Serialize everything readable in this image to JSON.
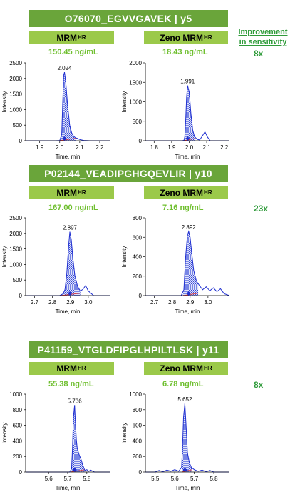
{
  "improvement_header": [
    "Improvement",
    "in sensitivity"
  ],
  "chart_data": [
    {
      "peptide": "O76070_EGVVGAVEK | y5",
      "improvement": "8x",
      "panels": [
        {
          "method": "MRM",
          "method_sup": "HR",
          "concentration": "150.45 ng/mL",
          "type": "line",
          "xlabel": "Time, min",
          "ylabel": "Intensity",
          "xlim": [
            1.83,
            2.25
          ],
          "ylim": [
            0,
            2500
          ],
          "xticks": [
            "1.9",
            "2.0",
            "2.1",
            "2.2"
          ],
          "xtick_values": [
            1.9,
            2.0,
            2.1,
            2.2
          ],
          "yticks": [
            "0",
            "500",
            "1000",
            "1500",
            "2000",
            "2500"
          ],
          "ytick_values": [
            0,
            500,
            1000,
            1500,
            2000,
            2500
          ],
          "apex_label": "2.024",
          "x": [
            1.83,
            1.9,
            1.98,
            2.0,
            2.01,
            2.015,
            2.02,
            2.024,
            2.03,
            2.04,
            2.05,
            2.06,
            2.07,
            2.08,
            2.09,
            2.1,
            2.12,
            2.15,
            2.25
          ],
          "y": [
            0,
            0,
            0,
            5,
            200,
            1200,
            2100,
            2200,
            1900,
            1100,
            500,
            250,
            140,
            90,
            70,
            40,
            10,
            0,
            0
          ],
          "shade": [
            1.995,
            2.08
          ]
        },
        {
          "method": "Zeno MRM",
          "method_sup": "HR",
          "concentration": "18.43 ng/mL",
          "type": "line",
          "xlabel": "Time, min",
          "ylabel": "Intensity",
          "xlim": [
            1.75,
            2.23
          ],
          "ylim": [
            0,
            2000
          ],
          "xticks": [
            "1.8",
            "1.9",
            "2.0",
            "2.1",
            "2.2"
          ],
          "xtick_values": [
            1.8,
            1.9,
            2.0,
            2.1,
            2.2
          ],
          "yticks": [
            "0",
            "500",
            "1000",
            "1500",
            "2000"
          ],
          "ytick_values": [
            0,
            500,
            1000,
            1500,
            2000
          ],
          "apex_label": "1.991",
          "x": [
            1.75,
            1.9,
            1.96,
            1.97,
            1.975,
            1.98,
            1.985,
            1.991,
            2.0,
            2.01,
            2.02,
            2.03,
            2.04,
            2.05,
            2.06,
            2.075,
            2.09,
            2.105,
            2.12,
            2.23
          ],
          "y": [
            0,
            0,
            0,
            10,
            100,
            500,
            1100,
            1420,
            1250,
            700,
            280,
            110,
            60,
            30,
            20,
            120,
            230,
            90,
            0,
            0
          ],
          "shade": [
            1.97,
            2.035
          ]
        }
      ]
    },
    {
      "peptide": "P02144_VEADIPGHGQEVLIR | y10",
      "improvement": "23x",
      "panels": [
        {
          "method": "MRM",
          "method_sup": "HR",
          "concentration": "167.00 ng/mL",
          "type": "line",
          "xlabel": "Time, min",
          "ylabel": "Intensity",
          "xlim": [
            2.65,
            3.12
          ],
          "ylim": [
            0,
            2500
          ],
          "xticks": [
            "2.7",
            "2.8",
            "2.9",
            "3.0"
          ],
          "xtick_values": [
            2.7,
            2.8,
            2.9,
            3.0
          ],
          "yticks": [
            "0",
            "500",
            "1000",
            "1500",
            "2000",
            "2500"
          ],
          "ytick_values": [
            0,
            500,
            1000,
            1500,
            2000,
            2500
          ],
          "apex_label": "2.897",
          "x": [
            2.65,
            2.8,
            2.84,
            2.86,
            2.87,
            2.88,
            2.89,
            2.897,
            2.905,
            2.915,
            2.925,
            2.94,
            2.955,
            2.97,
            2.985,
            3.0,
            3.03,
            3.12
          ],
          "y": [
            0,
            0,
            0,
            60,
            200,
            700,
            1600,
            2050,
            1800,
            1150,
            650,
            300,
            150,
            200,
            320,
            150,
            0,
            0
          ],
          "shade": [
            2.845,
            2.955
          ]
        },
        {
          "method": "Zeno MRM",
          "method_sup": "HR",
          "concentration": "7.16 ng/mL",
          "type": "line",
          "xlabel": "Time, min",
          "ylabel": "Intensity",
          "xlim": [
            2.65,
            3.12
          ],
          "ylim": [
            0,
            800
          ],
          "xticks": [
            "2.7",
            "2.8",
            "2.9",
            "3.0"
          ],
          "xtick_values": [
            2.7,
            2.8,
            2.9,
            3.0
          ],
          "yticks": [
            "0",
            "200",
            "400",
            "600",
            "800"
          ],
          "ytick_values": [
            0,
            200,
            400,
            600,
            800
          ],
          "apex_label": "2.892",
          "x": [
            2.65,
            2.8,
            2.85,
            2.865,
            2.875,
            2.885,
            2.892,
            2.9,
            2.91,
            2.92,
            2.935,
            2.95,
            2.97,
            2.99,
            3.01,
            3.03,
            3.05,
            3.07,
            3.09,
            3.12
          ],
          "y": [
            0,
            0,
            0,
            60,
            400,
            620,
            660,
            600,
            420,
            260,
            150,
            110,
            60,
            90,
            50,
            80,
            40,
            70,
            20,
            0
          ],
          "shade": [
            2.86,
            2.945
          ]
        }
      ]
    },
    {
      "peptide": "P41159_VTGLDFIPGLHPILTLSK | y11",
      "improvement": "8x",
      "panels": [
        {
          "method": "MRM",
          "method_sup": "HR",
          "concentration": "55.38 ng/mL",
          "type": "line",
          "xlabel": "Time, min",
          "ylabel": "Intensity",
          "xlim": [
            5.48,
            5.92
          ],
          "ylim": [
            0,
            1000
          ],
          "xticks": [
            "5.6",
            "5.7",
            "5.8"
          ],
          "xtick_values": [
            5.6,
            5.7,
            5.8
          ],
          "yticks": [
            "0",
            "200",
            "400",
            "600",
            "800",
            "1000"
          ],
          "ytick_values": [
            0,
            200,
            400,
            600,
            800,
            1000
          ],
          "apex_label": "5.736",
          "x": [
            5.48,
            5.68,
            5.71,
            5.72,
            5.725,
            5.73,
            5.736,
            5.74,
            5.745,
            5.75,
            5.76,
            5.77,
            5.78,
            5.79,
            5.8,
            5.81,
            5.82,
            5.84,
            5.92
          ],
          "y": [
            0,
            0,
            0,
            40,
            300,
            700,
            860,
            650,
            420,
            300,
            220,
            160,
            80,
            20,
            30,
            10,
            25,
            0,
            0
          ],
          "shade": [
            5.715,
            5.79
          ]
        },
        {
          "method": "Zeno MRM",
          "method_sup": "HR",
          "concentration": "6.78 ng/mL",
          "type": "line",
          "xlabel": "Time, min",
          "ylabel": "Intensity",
          "xlim": [
            5.45,
            5.88
          ],
          "ylim": [
            0,
            1000
          ],
          "xticks": [
            "5.5",
            "5.6",
            "5.7",
            "5.8"
          ],
          "xtick_values": [
            5.5,
            5.6,
            5.7,
            5.8
          ],
          "yticks": [
            "0",
            "200",
            "400",
            "600",
            "800",
            "1000"
          ],
          "ytick_values": [
            0,
            200,
            400,
            600,
            800,
            1000
          ],
          "apex_label": "5.652",
          "x": [
            5.45,
            5.5,
            5.52,
            5.54,
            5.56,
            5.58,
            5.6,
            5.62,
            5.635,
            5.64,
            5.645,
            5.652,
            5.658,
            5.665,
            5.675,
            5.685,
            5.7,
            5.72,
            5.74,
            5.76,
            5.78,
            5.8,
            5.88
          ],
          "y": [
            0,
            0,
            20,
            5,
            25,
            10,
            30,
            10,
            60,
            300,
            700,
            880,
            600,
            250,
            120,
            60,
            30,
            10,
            25,
            5,
            20,
            0,
            0
          ],
          "shade": [
            5.636,
            5.69
          ]
        }
      ]
    }
  ]
}
